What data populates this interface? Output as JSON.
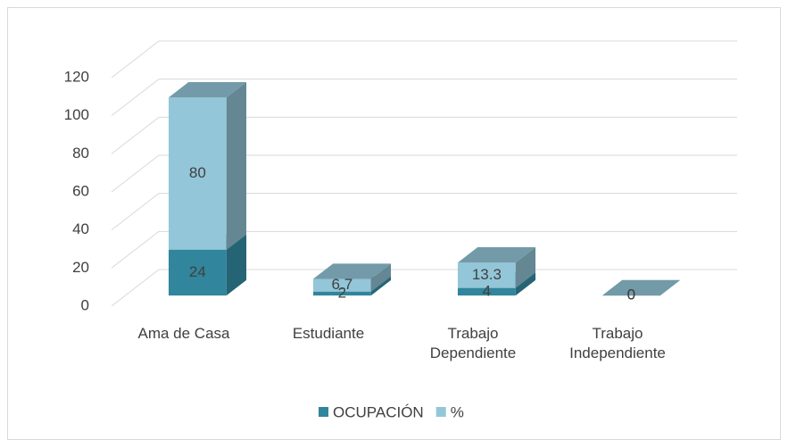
{
  "chart_data": {
    "type": "bar3d_stacked",
    "categories": [
      "Ama de Casa",
      "Estudiante",
      "Trabajo Dependiente",
      "Trabajo Independiente"
    ],
    "series": [
      {
        "name": "OCUPACIÓN",
        "color": "#31859c",
        "values": [
          24,
          2,
          4,
          0
        ]
      },
      {
        "name": "%",
        "color": "#93c6d8",
        "values": [
          80,
          6.7,
          13.3,
          0
        ]
      }
    ],
    "ylim": [
      0,
      120
    ],
    "yticks": [
      0,
      20,
      40,
      60,
      80,
      100,
      120
    ],
    "grid": true,
    "legend": "bottom"
  }
}
